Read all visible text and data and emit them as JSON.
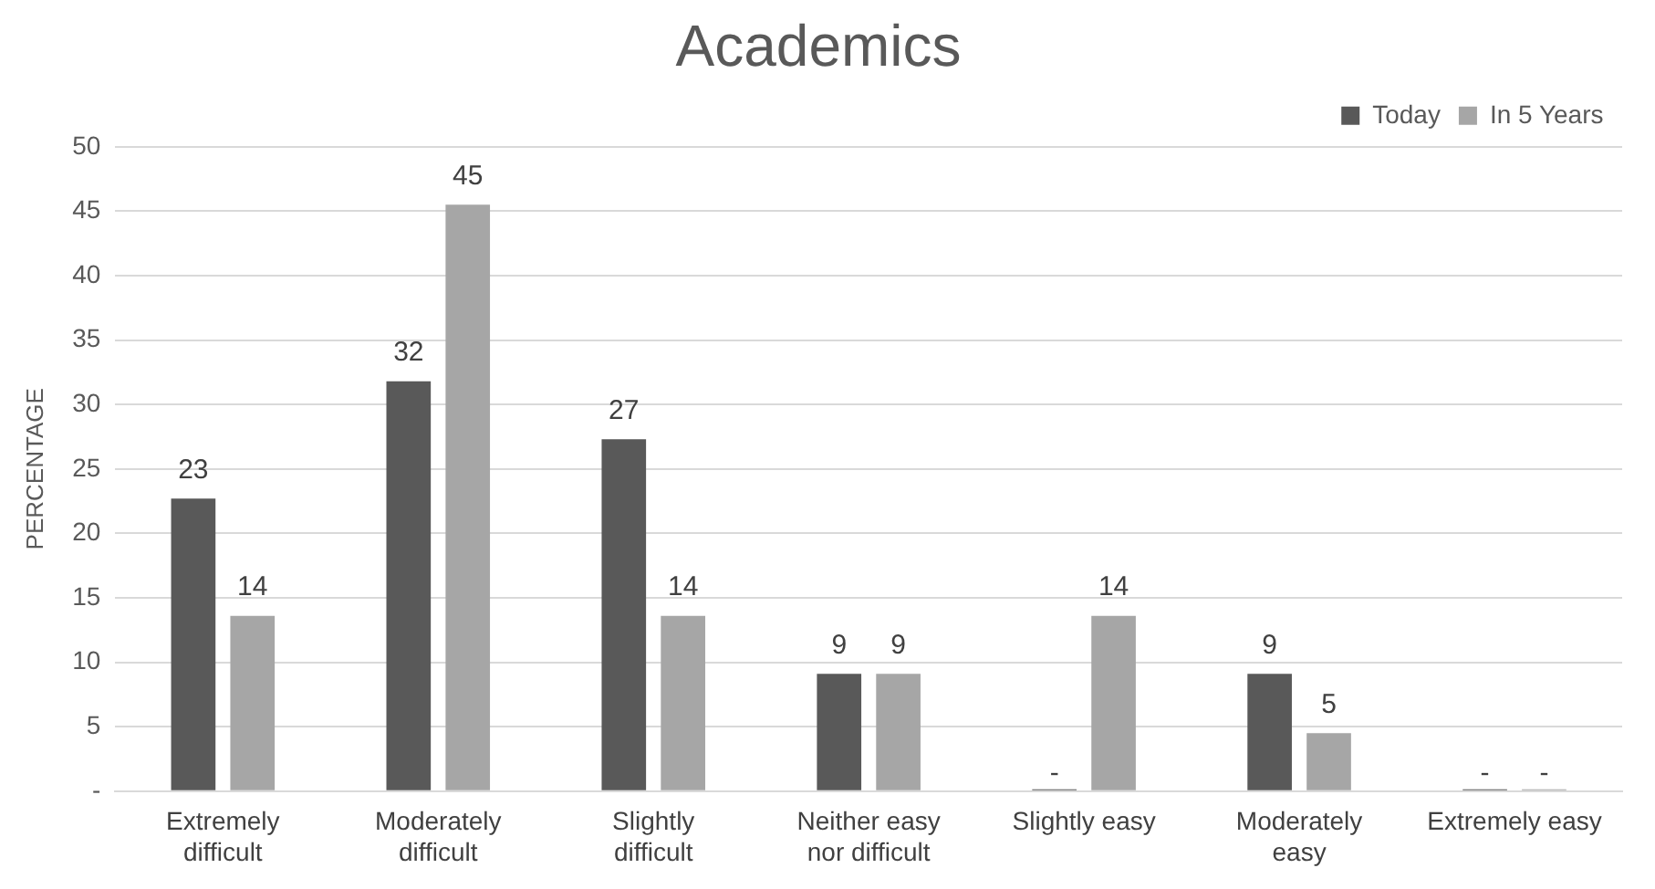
{
  "chart_data": {
    "type": "bar",
    "title": "Academics",
    "ylabel": "PERCENTAGE",
    "categories": [
      "Extremely difficult",
      "Moderately difficult",
      "Slightly difficult",
      "Neither easy nor difficult",
      "Slightly easy",
      "Moderately easy",
      "Extremely easy"
    ],
    "series": [
      {
        "name": "Today",
        "color": "#595959",
        "values": [
          22.7,
          31.8,
          27.3,
          9.1,
          0,
          9.1,
          0
        ],
        "value_labels": [
          "23",
          "32",
          "27",
          "9",
          "-",
          "9",
          "-"
        ]
      },
      {
        "name": "In 5 Years",
        "color": "#a6a6a6",
        "values": [
          13.6,
          45.5,
          13.6,
          9.1,
          13.6,
          4.5,
          0
        ],
        "value_labels": [
          "14",
          "45",
          "14",
          "9",
          "14",
          "5",
          "-"
        ]
      }
    ],
    "ylim": [
      0,
      50
    ],
    "yticks": [
      {
        "value": 0,
        "label": "-"
      },
      5,
      10,
      15,
      20,
      25,
      30,
      35,
      40,
      45,
      50
    ],
    "grid": "y",
    "legend": "top right"
  }
}
